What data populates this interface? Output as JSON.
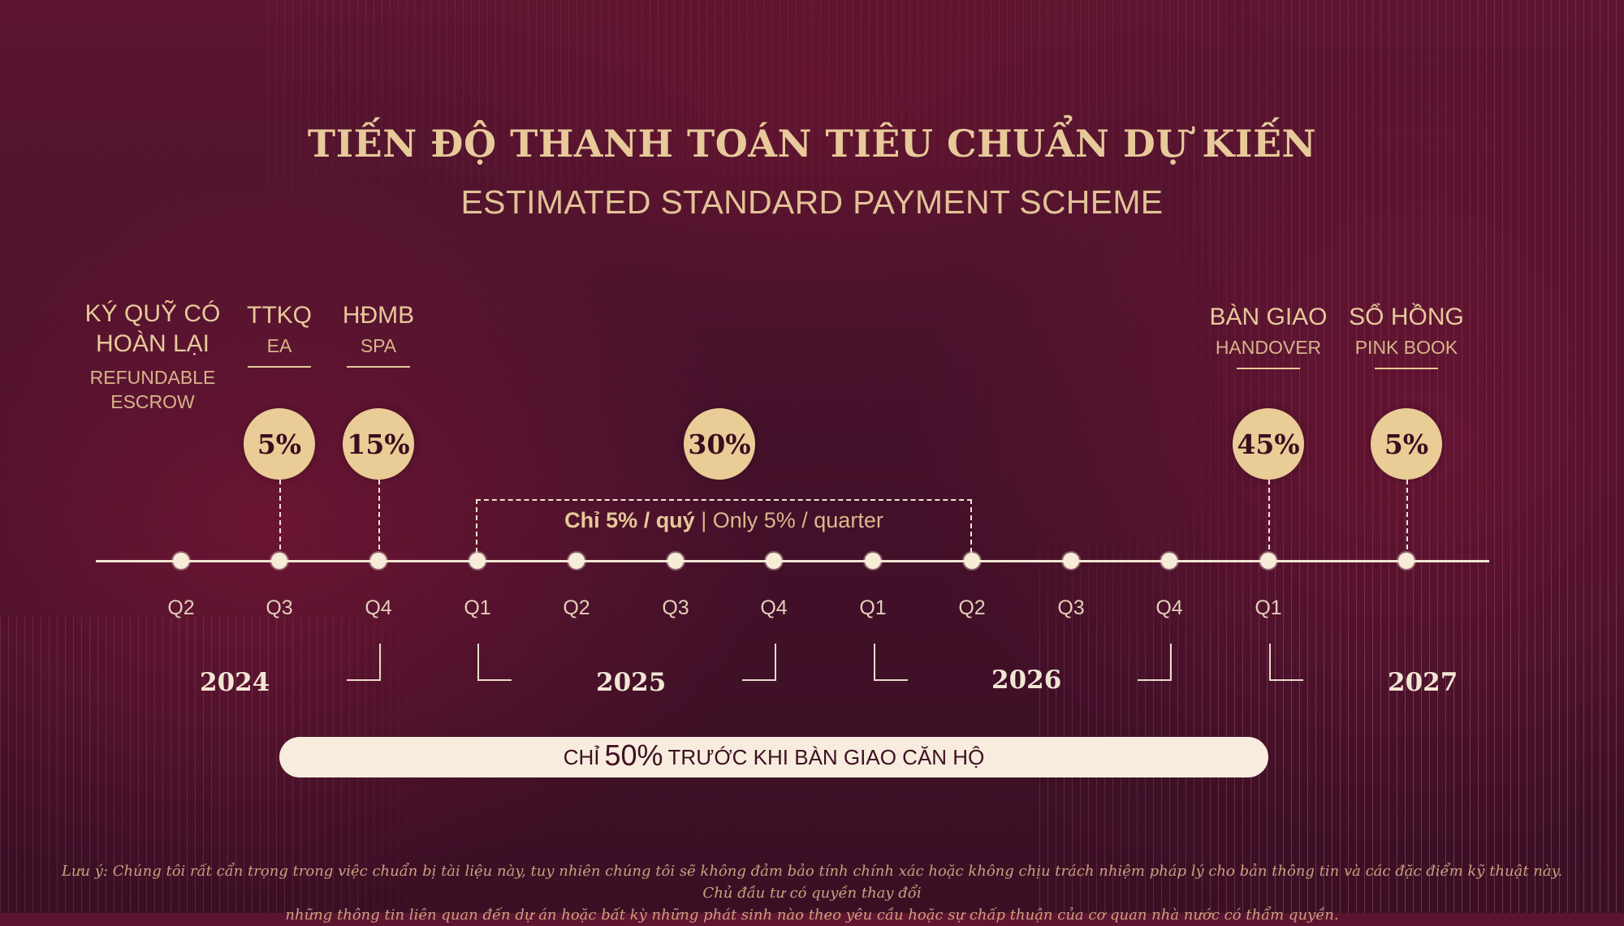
{
  "title": {
    "vi": "TIẾN ĐỘ THANH TOÁN TIÊU CHUẨN DỰ KIẾN",
    "en": "ESTIMATED STANDARD PAYMENT SCHEME"
  },
  "milestones": [
    {
      "vi_line1": "KÝ QUỸ CÓ",
      "vi_line2": "HOÀN LẠI",
      "en_line1": "REFUNDABLE",
      "en_line2": "ESCROW"
    },
    {
      "vi": "TTKQ",
      "en": "EA",
      "percent": "5%"
    },
    {
      "vi": "HĐMB",
      "en": "SPA",
      "percent": "15%"
    },
    {
      "percent": "30%"
    },
    {
      "vi": "BÀN GIAO",
      "en": "HANDOVER",
      "percent": "45%"
    },
    {
      "vi": "SỔ HỒNG",
      "en": "PINK BOOK",
      "percent": "5%"
    }
  ],
  "quarters": [
    "Q2",
    "Q3",
    "Q4",
    "Q1",
    "Q2",
    "Q3",
    "Q4",
    "Q1",
    "Q2",
    "Q3",
    "Q4",
    "Q1"
  ],
  "years": [
    "2024",
    "2025",
    "2026",
    "2027"
  ],
  "installment": {
    "vi": "Chỉ 5% / quý",
    "separator": " | ",
    "en": "Only 5% / quarter"
  },
  "summary": {
    "prefix": "CHỈ",
    "highlight": "50%",
    "suffix": "TRƯỚC KHI BÀN GIAO CĂN HỘ"
  },
  "disclaimer": {
    "line1": "Lưu ý: Chúng tôi rất cẩn trọng trong việc chuẩn bị tài liệu này, tuy nhiên chúng tôi sẽ không đảm bảo tính chính xác hoặc không chịu trách nhiệm pháp lý cho bản thông tin và các đặc điểm kỹ thuật này. Chủ đầu tư có quyền thay đổi",
    "line2": "những thông tin liên quan đến dự án hoặc bất kỳ những phát sinh nào theo yêu cầu hoặc sự chấp thuận của cơ quan nhà nước có thẩm quyền."
  },
  "colors": {
    "background": "#45112a",
    "gold": "#e7c99a",
    "circle": "#e9cc96",
    "pill": "#f7ecdd"
  }
}
